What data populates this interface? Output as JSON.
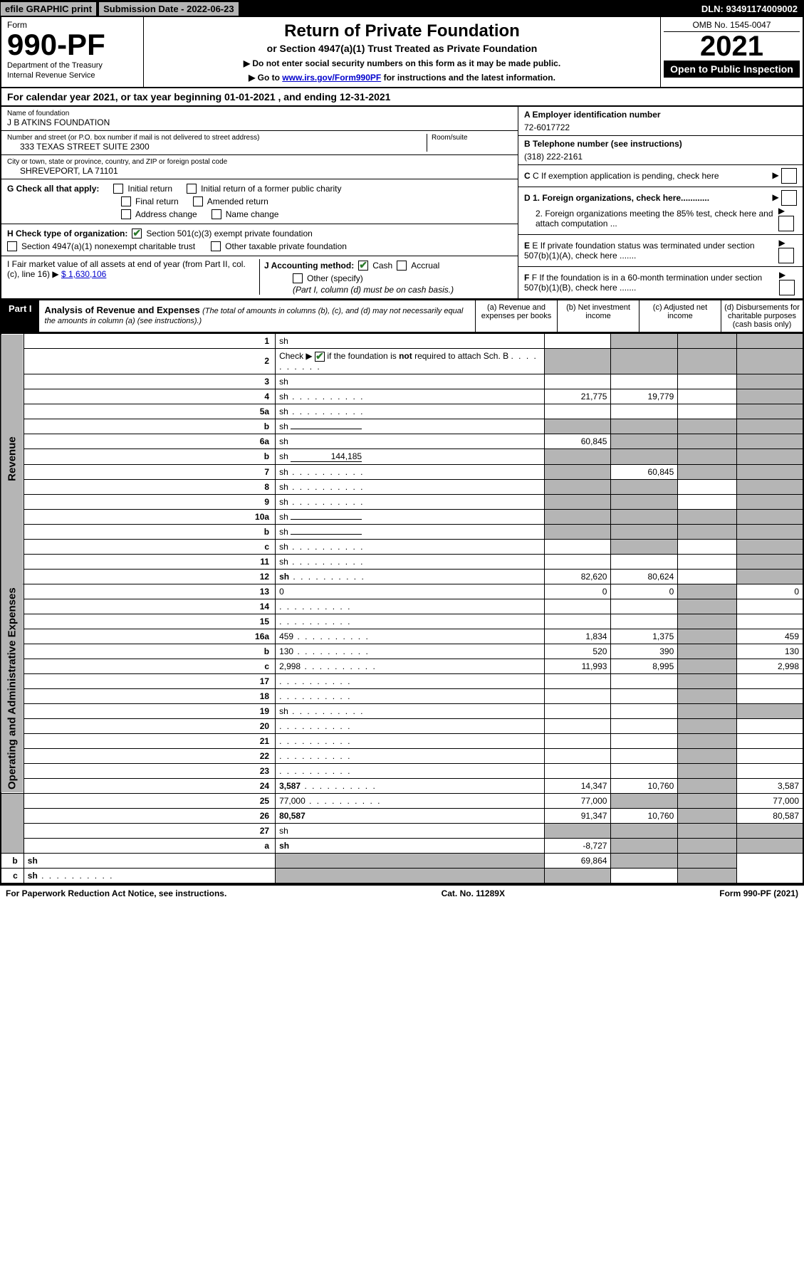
{
  "topbar": {
    "efile": "efile GRAPHIC print",
    "submission": "Submission Date - 2022-06-23",
    "dln": "DLN: 93491174009002"
  },
  "header": {
    "form_label": "Form",
    "form_num": "990-PF",
    "dept1": "Department of the Treasury",
    "dept2": "Internal Revenue Service",
    "title": "Return of Private Foundation",
    "sub1": "or Section 4947(a)(1) Trust Treated as Private Foundation",
    "sub2a": "▶ Do not enter social security numbers on this form as it may be made public.",
    "sub2b": "▶ Go to ",
    "sub2b_link": "www.irs.gov/Form990PF",
    "sub2b_after": " for instructions and the latest information.",
    "omb": "OMB No. 1545-0047",
    "year": "2021",
    "open": "Open to Public Inspection"
  },
  "cal_year": "For calendar year 2021, or tax year beginning 01-01-2021                , and ending 12-31-2021",
  "info": {
    "name_label": "Name of foundation",
    "name": "J B ATKINS FOUNDATION",
    "addr_label": "Number and street (or P.O. box number if mail is not delivered to street address)",
    "addr": "333 TEXAS STREET SUITE 2300",
    "room_label": "Room/suite",
    "city_label": "City or town, state or province, country, and ZIP or foreign postal code",
    "city": "SHREVEPORT, LA  71101",
    "a_label": "A Employer identification number",
    "a_val": "72-6017722",
    "b_label": "B Telephone number (see instructions)",
    "b_val": "(318) 222-2161",
    "c_label": "C If exemption application is pending, check here",
    "d1": "D 1. Foreign organizations, check here............",
    "d2": "2. Foreign organizations meeting the 85% test, check here and attach computation ...",
    "e": "E If private foundation status was terminated under section 507(b)(1)(A), check here .......",
    "f": "F  If the foundation is in a 60-month termination under section 507(b)(1)(B), check here .......",
    "g_label": "G Check all that apply:",
    "g_opts": [
      "Initial return",
      "Initial return of a former public charity",
      "Final return",
      "Amended return",
      "Address change",
      "Name change"
    ],
    "h_label": "H Check type of organization:",
    "h_opt1": "Section 501(c)(3) exempt private foundation",
    "h_opt2": "Section 4947(a)(1) nonexempt charitable trust",
    "h_opt3": "Other taxable private foundation",
    "i_label": "I Fair market value of all assets at end of year (from Part II, col. (c), line 16) ▶",
    "i_val": "$  1,630,106",
    "j_label": "J Accounting method:",
    "j_cash": "Cash",
    "j_accrual": "Accrual",
    "j_other": "Other (specify)",
    "j_note": "(Part I, column (d) must be on cash basis.)"
  },
  "part1": {
    "label": "Part I",
    "title": "Analysis of Revenue and Expenses",
    "note": "(The total of amounts in columns (b), (c), and (d) may not necessarily equal the amounts in column (a) (see instructions).)",
    "col_a": "(a)   Revenue and expenses per books",
    "col_b": "(b)   Net investment income",
    "col_c": "(c)   Adjusted net income",
    "col_d": "(d)  Disbursements for charitable purposes (cash basis only)"
  },
  "sections": {
    "revenue": "Revenue",
    "opex": "Operating and Administrative Expenses"
  },
  "rows": [
    {
      "n": "1",
      "d": "sh",
      "a": "",
      "b": "sh",
      "c": "sh"
    },
    {
      "n": "2",
      "d": "sh",
      "dots": true,
      "a": "sh",
      "b": "sh",
      "c": "sh"
    },
    {
      "n": "3",
      "d": "sh",
      "a": "",
      "b": "",
      "c": ""
    },
    {
      "n": "4",
      "d": "sh",
      "dots": true,
      "a": "21,775",
      "b": "19,779",
      "c": ""
    },
    {
      "n": "5a",
      "d": "sh",
      "dots": true,
      "a": "",
      "b": "",
      "c": ""
    },
    {
      "n": "b",
      "d": "sh",
      "box": true,
      "a": "sh",
      "b": "sh",
      "c": "sh"
    },
    {
      "n": "6a",
      "d": "sh",
      "a": "60,845",
      "b": "sh",
      "c": "sh"
    },
    {
      "n": "b",
      "d": "sh",
      "box": true,
      "boxval": "144,185",
      "a": "sh",
      "b": "sh",
      "c": "sh"
    },
    {
      "n": "7",
      "d": "sh",
      "dots": true,
      "a": "sh",
      "b": "60,845",
      "c": "sh"
    },
    {
      "n": "8",
      "d": "sh",
      "dots": true,
      "a": "sh",
      "b": "sh",
      "c": ""
    },
    {
      "n": "9",
      "d": "sh",
      "dots": true,
      "a": "sh",
      "b": "sh",
      "c": ""
    },
    {
      "n": "10a",
      "d": "sh",
      "box": true,
      "a": "sh",
      "b": "sh",
      "c": "sh"
    },
    {
      "n": "b",
      "d": "sh",
      "dots": true,
      "box": true,
      "a": "sh",
      "b": "sh",
      "c": "sh"
    },
    {
      "n": "c",
      "d": "sh",
      "dots": true,
      "a": "",
      "b": "sh",
      "c": ""
    },
    {
      "n": "11",
      "d": "sh",
      "dots": true,
      "a": "",
      "b": "",
      "c": ""
    },
    {
      "n": "12",
      "d": "sh",
      "bold": true,
      "dots": true,
      "a": "82,620",
      "b": "80,624",
      "c": ""
    },
    {
      "n": "13",
      "d": "0",
      "a": "0",
      "b": "0",
      "c": "sh"
    },
    {
      "n": "14",
      "d": "",
      "dots": true,
      "a": "",
      "b": "",
      "c": "sh"
    },
    {
      "n": "15",
      "d": "",
      "dots": true,
      "a": "",
      "b": "",
      "c": "sh"
    },
    {
      "n": "16a",
      "d": "459",
      "dots": true,
      "a": "1,834",
      "b": "1,375",
      "c": "sh"
    },
    {
      "n": "b",
      "d": "130",
      "dots": true,
      "a": "520",
      "b": "390",
      "c": "sh"
    },
    {
      "n": "c",
      "d": "2,998",
      "dots": true,
      "a": "11,993",
      "b": "8,995",
      "c": "sh"
    },
    {
      "n": "17",
      "d": "",
      "dots": true,
      "a": "",
      "b": "",
      "c": "sh"
    },
    {
      "n": "18",
      "d": "",
      "dots": true,
      "a": "",
      "b": "",
      "c": "sh"
    },
    {
      "n": "19",
      "d": "sh",
      "dots": true,
      "a": "",
      "b": "",
      "c": "sh"
    },
    {
      "n": "20",
      "d": "",
      "dots": true,
      "a": "",
      "b": "",
      "c": "sh"
    },
    {
      "n": "21",
      "d": "",
      "dots": true,
      "a": "",
      "b": "",
      "c": "sh"
    },
    {
      "n": "22",
      "d": "",
      "dots": true,
      "a": "",
      "b": "",
      "c": "sh"
    },
    {
      "n": "23",
      "d": "",
      "dots": true,
      "a": "",
      "b": "",
      "c": "sh"
    },
    {
      "n": "24",
      "d": "3,587",
      "bold": true,
      "dots": true,
      "a": "14,347",
      "b": "10,760",
      "c": "sh"
    },
    {
      "n": "25",
      "d": "77,000",
      "dots": true,
      "a": "77,000",
      "b": "sh",
      "c": "sh"
    },
    {
      "n": "26",
      "d": "80,587",
      "bold": true,
      "a": "91,347",
      "b": "10,760",
      "c": "sh"
    },
    {
      "n": "27",
      "d": "sh",
      "a": "sh",
      "b": "sh",
      "c": "sh"
    },
    {
      "n": "a",
      "d": "sh",
      "bold": true,
      "a": "-8,727",
      "b": "sh",
      "c": "sh"
    },
    {
      "n": "b",
      "d": "sh",
      "bold": true,
      "a": "sh",
      "b": "69,864",
      "c": "sh"
    },
    {
      "n": "c",
      "d": "sh",
      "bold": true,
      "dots": true,
      "a": "sh",
      "b": "sh",
      "c": ""
    }
  ],
  "footer": {
    "left": "For Paperwork Reduction Act Notice, see instructions.",
    "mid": "Cat. No. 11289X",
    "right": "Form 990-PF (2021)"
  },
  "colors": {
    "shade": "#b5b5b5",
    "link": "#0000cc",
    "check": "#2c7a2c"
  }
}
